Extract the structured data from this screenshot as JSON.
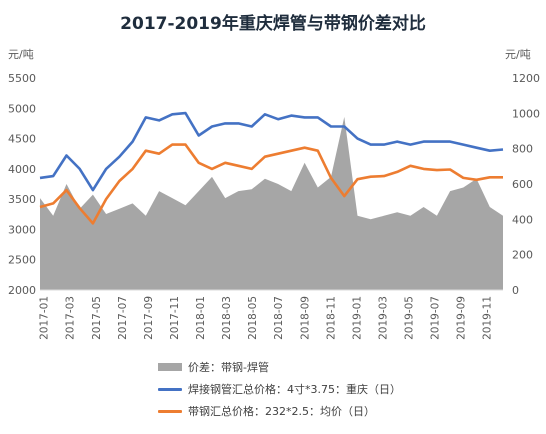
{
  "chart_data": {
    "type": "line",
    "title": "2017-2019年重庆焊管与带钢价差对比",
    "y_left_unit": "元/吨",
    "y_right_unit": "元/吨",
    "y_left_range": [
      2000,
      5500
    ],
    "y_right_range": [
      0,
      1200
    ],
    "y_left_ticks": [
      "2000",
      "2500",
      "3000",
      "3500",
      "4000",
      "4500",
      "5000",
      "5500"
    ],
    "y_right_ticks": [
      "0",
      "200",
      "400",
      "600",
      "800",
      "1000",
      "1200"
    ],
    "x_ticks": [
      "2017-01",
      "2017-03",
      "2017-05",
      "2017-07",
      "2017-09",
      "2017-11",
      "2018-01",
      "2018-03",
      "2018-05",
      "2018-07",
      "2018-09",
      "2018-11",
      "2019-01",
      "2019-03",
      "2019-05",
      "2019-07",
      "2019-09",
      "2019-11"
    ],
    "grid": "none",
    "legend_position": "bottom",
    "series": [
      {
        "name": "价差：带钢-焊管",
        "type": "area",
        "axis": "right",
        "color": "#a6a6a6",
        "x": [
          "2017-01",
          "2017-02",
          "2017-03",
          "2017-04",
          "2017-05",
          "2017-06",
          "2017-07",
          "2017-08",
          "2017-09",
          "2017-10",
          "2017-11",
          "2017-12",
          "2018-01",
          "2018-02",
          "2018-03",
          "2018-04",
          "2018-05",
          "2018-06",
          "2018-07",
          "2018-08",
          "2018-09",
          "2018-10",
          "2018-11",
          "2018-12",
          "2019-01",
          "2019-02",
          "2019-03",
          "2019-04",
          "2019-05",
          "2019-06",
          "2019-07",
          "2019-08",
          "2019-09",
          "2019-10",
          "2019-11",
          "2019-12"
        ],
        "values": [
          520,
          420,
          600,
          460,
          540,
          430,
          460,
          490,
          420,
          560,
          520,
          480,
          560,
          640,
          520,
          560,
          570,
          630,
          600,
          560,
          720,
          580,
          640,
          980,
          420,
          400,
          420,
          440,
          420,
          470,
          420,
          560,
          580,
          630,
          470,
          420
        ]
      },
      {
        "name": "焊接钢管汇总价格：4寸*3.75：重庆（日）",
        "type": "line",
        "axis": "left",
        "color": "#4472c4",
        "x": [
          "2017-01",
          "2017-02",
          "2017-03",
          "2017-04",
          "2017-05",
          "2017-06",
          "2017-07",
          "2017-08",
          "2017-09",
          "2017-10",
          "2017-11",
          "2017-12",
          "2018-01",
          "2018-02",
          "2018-03",
          "2018-04",
          "2018-05",
          "2018-06",
          "2018-07",
          "2018-08",
          "2018-09",
          "2018-10",
          "2018-11",
          "2018-12",
          "2019-01",
          "2019-02",
          "2019-03",
          "2019-04",
          "2019-05",
          "2019-06",
          "2019-07",
          "2019-08",
          "2019-09",
          "2019-10",
          "2019-11",
          "2019-12"
        ],
        "values": [
          3850,
          3880,
          4220,
          4000,
          3650,
          4000,
          4200,
          4450,
          4850,
          4800,
          4900,
          4920,
          4550,
          4700,
          4750,
          4750,
          4700,
          4900,
          4820,
          4880,
          4850,
          4850,
          4700,
          4700,
          4500,
          4400,
          4400,
          4450,
          4400,
          4450,
          4450,
          4450,
          4400,
          4350,
          4300,
          4320
        ]
      },
      {
        "name": "带钢汇总价格：232*2.5：均价（日）",
        "type": "line",
        "axis": "left",
        "color": "#ed7d31",
        "x": [
          "2017-01",
          "2017-02",
          "2017-03",
          "2017-04",
          "2017-05",
          "2017-06",
          "2017-07",
          "2017-08",
          "2017-09",
          "2017-10",
          "2017-11",
          "2017-12",
          "2018-01",
          "2018-02",
          "2018-03",
          "2018-04",
          "2018-05",
          "2018-06",
          "2018-07",
          "2018-08",
          "2018-09",
          "2018-10",
          "2018-11",
          "2018-12",
          "2019-01",
          "2019-02",
          "2019-03",
          "2019-04",
          "2019-05",
          "2019-06",
          "2019-07",
          "2019-08",
          "2019-09",
          "2019-10",
          "2019-11",
          "2019-12"
        ],
        "values": [
          3370,
          3430,
          3650,
          3350,
          3100,
          3500,
          3800,
          4000,
          4300,
          4250,
          4400,
          4400,
          4100,
          4000,
          4100,
          4050,
          4000,
          4200,
          4250,
          4300,
          4350,
          4300,
          3850,
          3550,
          3830,
          3870,
          3880,
          3950,
          4050,
          4000,
          3980,
          3990,
          3850,
          3820,
          3860,
          3860
        ]
      }
    ]
  }
}
